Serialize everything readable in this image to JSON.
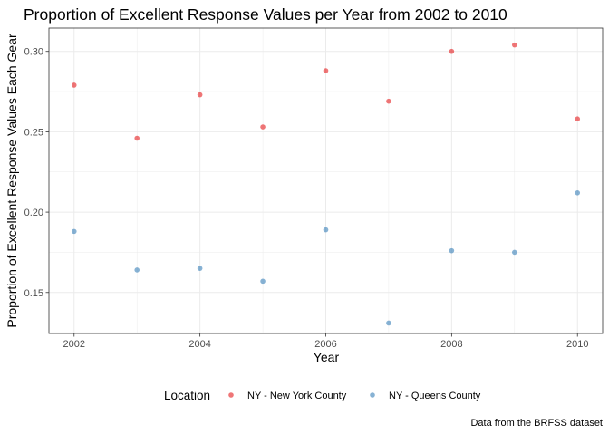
{
  "chart_data": {
    "type": "scatter",
    "title": "Proportion of Excellent Response Values per Year from 2002 to 2010",
    "xlabel": "Year",
    "ylabel": "Proportion of Excellent Response Values Each Gear",
    "caption": "Data from the BRFSS dataset",
    "xlim": [
      2001.6,
      2010.4
    ],
    "ylim": [
      0.1245,
      0.3145
    ],
    "x_ticks": [
      2002,
      2004,
      2006,
      2008,
      2010
    ],
    "x_tick_labels": [
      "2002",
      "2004",
      "2006",
      "2008",
      "2010"
    ],
    "y_ticks": [
      0.15,
      0.2,
      0.25,
      0.3
    ],
    "y_tick_labels": [
      "0.15",
      "0.20",
      "0.25",
      "0.30"
    ],
    "grid": true,
    "legend": {
      "title": "Location",
      "placement": "bottom"
    },
    "series": [
      {
        "name": "NY - New York County",
        "color": "#E41A1C",
        "x": [
          2002,
          2003,
          2004,
          2005,
          2006,
          2007,
          2008,
          2009,
          2010
        ],
        "y": [
          0.279,
          0.246,
          0.273,
          0.253,
          0.288,
          0.269,
          0.3,
          0.304,
          0.258
        ]
      },
      {
        "name": "NY - Queens County",
        "color": "#377EB8",
        "x": [
          2002,
          2003,
          2004,
          2005,
          2006,
          2007,
          2008,
          2009,
          2010
        ],
        "y": [
          0.188,
          0.164,
          0.165,
          0.157,
          0.189,
          0.131,
          0.176,
          0.175,
          0.212
        ]
      }
    ]
  }
}
